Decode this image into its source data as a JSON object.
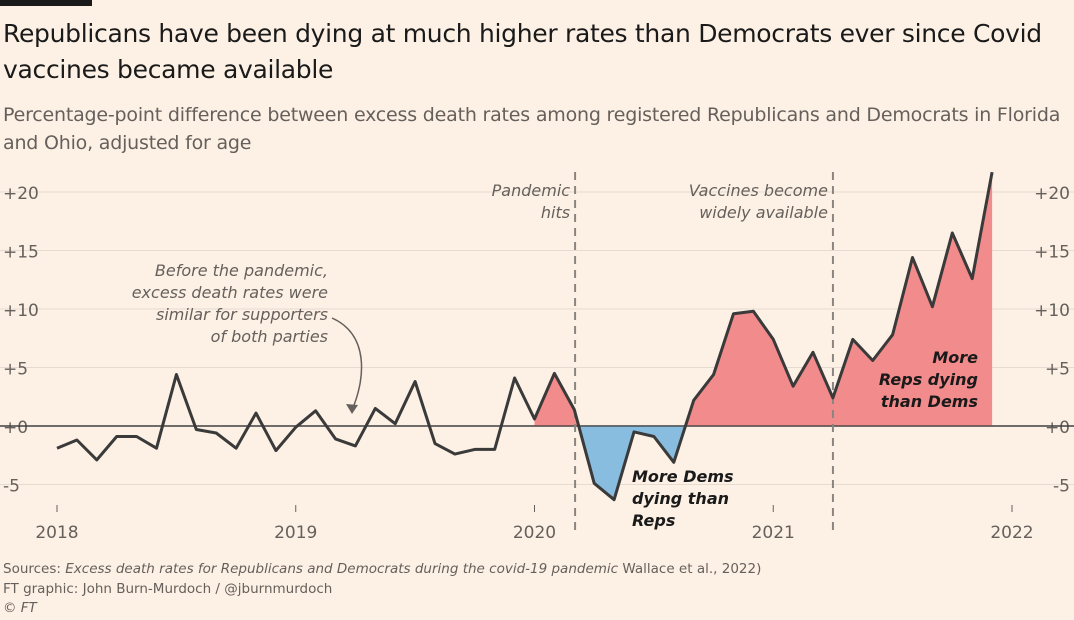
{
  "chart_data": {
    "type": "area",
    "title": "Republicans have been dying at much higher rates than Democrats ever since Covid vaccines became available",
    "subtitle": "Percentage-point difference between excess death rates among registered Republicans and Democrats in Florida and Ohio, adjusted for age",
    "xlabel": "",
    "ylabel": "",
    "xlim": [
      2018,
      2022
    ],
    "ylim": [
      -6.5,
      21.7
    ],
    "x_ticks": [
      "2018",
      "2019",
      "2020",
      "2021",
      "2022"
    ],
    "y_ticks": [
      "+20",
      "+15",
      "+10",
      "+5",
      "+0",
      "-5"
    ],
    "y_tick_values": [
      20,
      15,
      10,
      5,
      0,
      -5
    ],
    "grid": true,
    "x_start": "2018-01",
    "x_step": "month",
    "values": [
      -1.9,
      -1.2,
      -2.9,
      -0.9,
      -0.9,
      -1.9,
      4.4,
      -0.3,
      -0.6,
      -1.9,
      1.1,
      -2.1,
      -0.1,
      1.3,
      -1.1,
      -1.7,
      1.5,
      0.2,
      3.8,
      -1.5,
      -2.4,
      -2.0,
      -2.0,
      4.1,
      0.6,
      4.5,
      1.4,
      -4.9,
      -6.3,
      -0.5,
      -0.9,
      -3.1,
      2.2,
      4.4,
      9.6,
      9.8,
      7.4,
      3.4,
      6.3,
      2.4,
      7.4,
      5.6,
      7.8,
      14.4,
      10.2,
      16.5,
      12.6,
      21.7
    ],
    "colors": {
      "positive": "#f28b8b",
      "negative": "#88bde0",
      "line": "#3a3a3a",
      "background": "#fdf1e5"
    },
    "annotations": [
      {
        "text": [
          "Pandemic",
          "hits"
        ],
        "x": 2020.17,
        "type": "vline"
      },
      {
        "text": [
          "Vaccines become",
          "widely available"
        ],
        "x": 2021.25,
        "type": "vline"
      },
      {
        "text": [
          "Before the pandemic,",
          "excess death rates were",
          "similar for supporters",
          "of both parties"
        ],
        "type": "arrow-note"
      },
      {
        "text": [
          "More Dems",
          "dying than",
          "Reps"
        ],
        "type": "label"
      },
      {
        "text": [
          "More",
          "Reps dying",
          "than Dems"
        ],
        "type": "label"
      }
    ]
  },
  "footer": {
    "sources_prefix": "Sources: ",
    "sources_italic": "Excess death rates for Republicans and Democrats during the covid-19 pandemic",
    "sources_suffix": " Wallace et al., 2022)",
    "credit": "FT graphic: John Burn-Murdoch / @jburnmurdoch",
    "copyright": "© FT"
  }
}
